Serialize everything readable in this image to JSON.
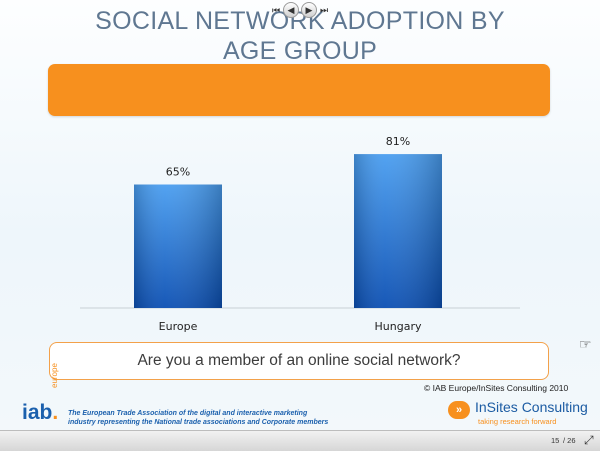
{
  "title_line1": "SOCIAL NETWORK ADOPTION BY",
  "title_line2": "AGE GROUP",
  "question": "Are you a member of an online social network?",
  "copyright": "© IAB Europe/InSites Consulting 2010",
  "iab": {
    "logo_text": "iab",
    "logo_dot": ".",
    "vertical_text": "europe",
    "tagline_line1": "The European Trade Association of the digital and interactive marketing",
    "tagline_line2": "industry representing the National trade associations and Corporate members"
  },
  "insites": {
    "name": "InSites Consulting",
    "tagline": "taking research forward"
  },
  "toolbar": {
    "first_icon": "first-slide-icon",
    "prev_icon": "previous-slide-icon",
    "next_icon": "next-slide-icon",
    "last_icon": "last-slide-icon",
    "current_page": "15",
    "total_pages": "/ 26",
    "expand_icon": "expand-icon"
  },
  "colors": {
    "title": "#5f7791",
    "accent_orange": "#f7901e",
    "bar_top": "#4a9ef0",
    "bar_bottom": "#0b4fb3"
  },
  "chart_data": {
    "type": "bar",
    "categories": [
      "Europe",
      "Hungary"
    ],
    "values": [
      65,
      81
    ],
    "value_labels": [
      "65%",
      "81%"
    ],
    "ylim": [
      0,
      100
    ],
    "grid": false,
    "legend": "none"
  }
}
